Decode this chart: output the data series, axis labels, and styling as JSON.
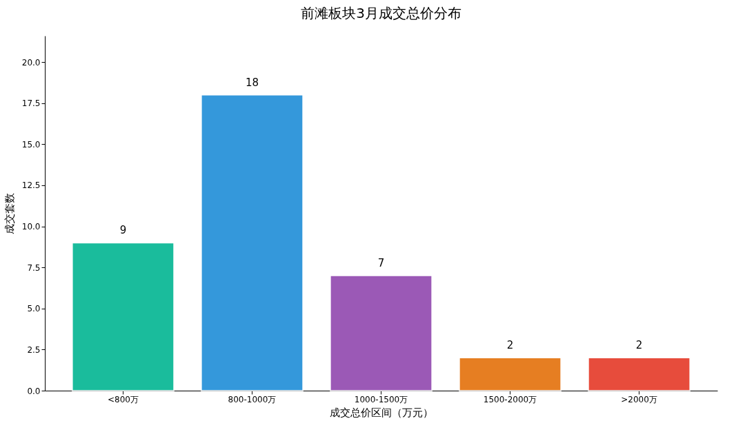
{
  "chart_data": {
    "type": "bar",
    "title": "前滩板块3月成交总价分布",
    "xlabel": "成交总价区间（万元）",
    "ylabel": "成交套数",
    "categories": [
      "<800万",
      "800-1000万",
      "1000-1500万",
      "1500-2000万",
      ">2000万"
    ],
    "values": [
      9,
      18,
      7,
      2,
      2
    ],
    "colors": [
      "#1abc9c",
      "#3498db",
      "#9b59b6",
      "#e67e22",
      "#e74c3c"
    ],
    "ylim": [
      0,
      21.6
    ],
    "yticks": [
      {
        "value": 0,
        "label": "0.0"
      },
      {
        "value": 2.5,
        "label": "2.5"
      },
      {
        "value": 5,
        "label": "5.0"
      },
      {
        "value": 7.5,
        "label": "7.5"
      },
      {
        "value": 10,
        "label": "10.0"
      },
      {
        "value": 12.5,
        "label": "12.5"
      },
      {
        "value": 15,
        "label": "15.0"
      },
      {
        "value": 17.5,
        "label": "17.5"
      },
      {
        "value": 20,
        "label": "20.0"
      }
    ],
    "data_labels": true
  }
}
